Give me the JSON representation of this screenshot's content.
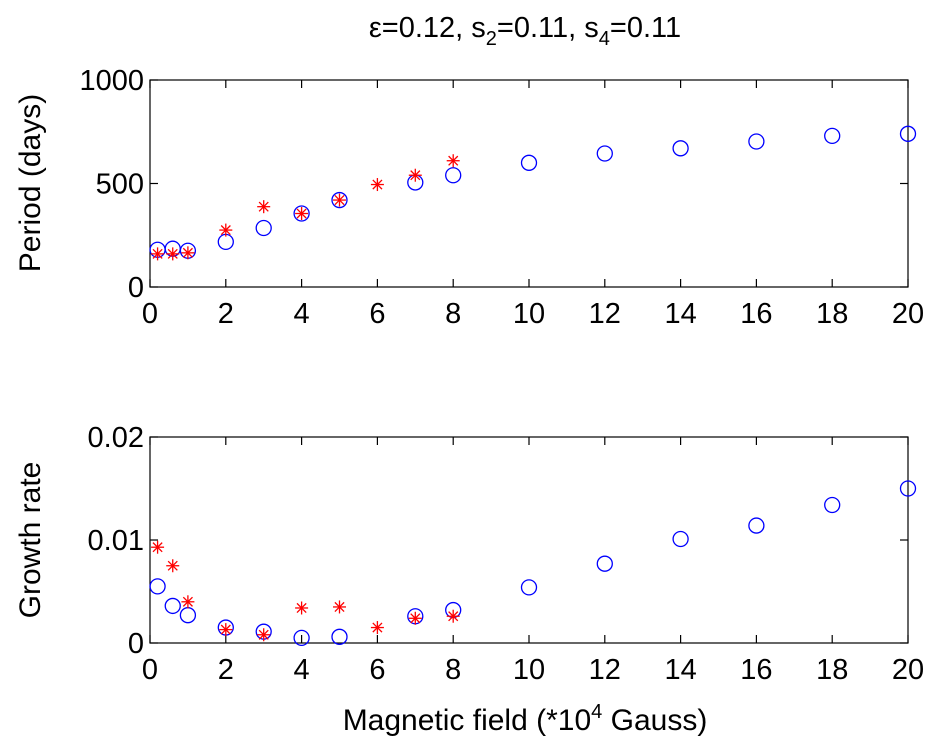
{
  "title": {
    "eps_symbol": "ε",
    "eps_value": "=0.12, s",
    "s2_sub": "2",
    "s2_value": "=0.11, s",
    "s4_sub": "4",
    "s4_value": "=0.11"
  },
  "colors": {
    "circle_series": "#0000ff",
    "star_series": "#ff0000",
    "axes": "#000000",
    "background": "#ffffff"
  },
  "chart_data": [
    {
      "type": "scatter",
      "title": "",
      "xlabel": "",
      "ylabel": "Period (days)",
      "xlim": [
        0,
        20
      ],
      "ylim": [
        0,
        1000
      ],
      "xticks": [
        0,
        2,
        4,
        6,
        8,
        10,
        12,
        14,
        16,
        18,
        20
      ],
      "yticks": [
        0,
        500,
        1000
      ],
      "ytick_labels": [
        "0",
        "500",
        "1000"
      ],
      "grid": false,
      "legend": "none",
      "series": [
        {
          "marker": "circle",
          "x": [
            0.2,
            0.6,
            1,
            2,
            3,
            4,
            5,
            7,
            8,
            10,
            12,
            14,
            16,
            18,
            20
          ],
          "y": [
            180,
            185,
            175,
            218,
            285,
            355,
            420,
            505,
            540,
            600,
            645,
            670,
            703,
            730,
            740
          ]
        },
        {
          "marker": "star",
          "x": [
            0.2,
            0.6,
            1,
            2,
            3,
            4,
            5,
            6,
            7,
            8
          ],
          "y": [
            160,
            160,
            165,
            275,
            388,
            355,
            420,
            495,
            540,
            610
          ]
        }
      ]
    },
    {
      "type": "scatter",
      "title": "",
      "xlabel": "Magnetic field (*10",
      "xlabel_sup": "4",
      "xlabel_tail": " Gauss)",
      "ylabel": "Growth rate",
      "xlim": [
        0,
        20
      ],
      "ylim": [
        0,
        0.02
      ],
      "xticks": [
        0,
        2,
        4,
        6,
        8,
        10,
        12,
        14,
        16,
        18,
        20
      ],
      "yticks": [
        0,
        0.01,
        0.02
      ],
      "ytick_labels": [
        "0",
        "0.01",
        "0.02"
      ],
      "grid": false,
      "legend": "none",
      "series": [
        {
          "marker": "circle",
          "x": [
            0.2,
            0.6,
            1,
            2,
            3,
            4,
            5,
            7,
            8,
            10,
            12,
            14,
            16,
            18,
            20
          ],
          "y": [
            0.0055,
            0.0036,
            0.0027,
            0.0015,
            0.0011,
            0.0005,
            0.0006,
            0.0026,
            0.0032,
            0.0054,
            0.0077,
            0.0101,
            0.0114,
            0.0134,
            0.015
          ]
        },
        {
          "marker": "star",
          "x": [
            0.2,
            0.6,
            1,
            2,
            3,
            4,
            5,
            6,
            7,
            8
          ],
          "y": [
            0.0093,
            0.0075,
            0.004,
            0.0013,
            0.0008,
            0.0034,
            0.0035,
            0.0015,
            0.0024,
            0.0026
          ]
        }
      ]
    }
  ]
}
